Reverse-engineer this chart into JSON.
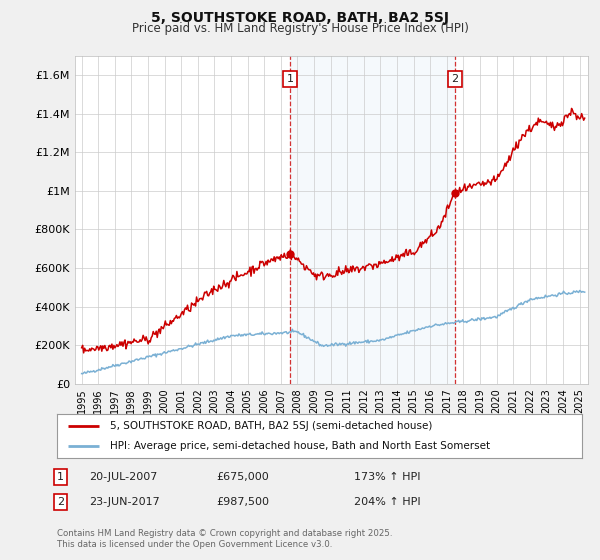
{
  "title": "5, SOUTHSTOKE ROAD, BATH, BA2 5SJ",
  "subtitle": "Price paid vs. HM Land Registry's House Price Index (HPI)",
  "xlim_years": [
    1994.6,
    2025.5
  ],
  "ylim": [
    0,
    1700000
  ],
  "yticks": [
    0,
    200000,
    400000,
    600000,
    800000,
    1000000,
    1200000,
    1400000,
    1600000
  ],
  "ytick_labels": [
    "£0",
    "£200K",
    "£400K",
    "£600K",
    "£800K",
    "£1M",
    "£1.2M",
    "£1.4M",
    "£1.6M"
  ],
  "xtick_years": [
    1995,
    1996,
    1997,
    1998,
    1999,
    2000,
    2001,
    2002,
    2003,
    2004,
    2005,
    2006,
    2007,
    2008,
    2009,
    2010,
    2011,
    2012,
    2013,
    2014,
    2015,
    2016,
    2017,
    2018,
    2019,
    2020,
    2021,
    2022,
    2023,
    2024,
    2025
  ],
  "red_line_color": "#cc0000",
  "blue_line_color": "#7ab0d4",
  "sale1_year": 2007.54,
  "sale1_price": 675000,
  "sale2_year": 2017.48,
  "sale2_price": 987500,
  "shaded_color": "#daeaf5",
  "legend_label_red": "5, SOUTHSTOKE ROAD, BATH, BA2 5SJ (semi-detached house)",
  "legend_label_blue": "HPI: Average price, semi-detached house, Bath and North East Somerset",
  "ann1_label": "1",
  "ann1_date": "20-JUL-2007",
  "ann1_price": "£675,000",
  "ann1_hpi": "173% ↑ HPI",
  "ann2_label": "2",
  "ann2_date": "23-JUN-2017",
  "ann2_price": "£987,500",
  "ann2_hpi": "204% ↑ HPI",
  "copyright": "Contains HM Land Registry data © Crown copyright and database right 2025.\nThis data is licensed under the Open Government Licence v3.0.",
  "bg_color": "#f0f0f0",
  "plot_bg_color": "#ffffff"
}
